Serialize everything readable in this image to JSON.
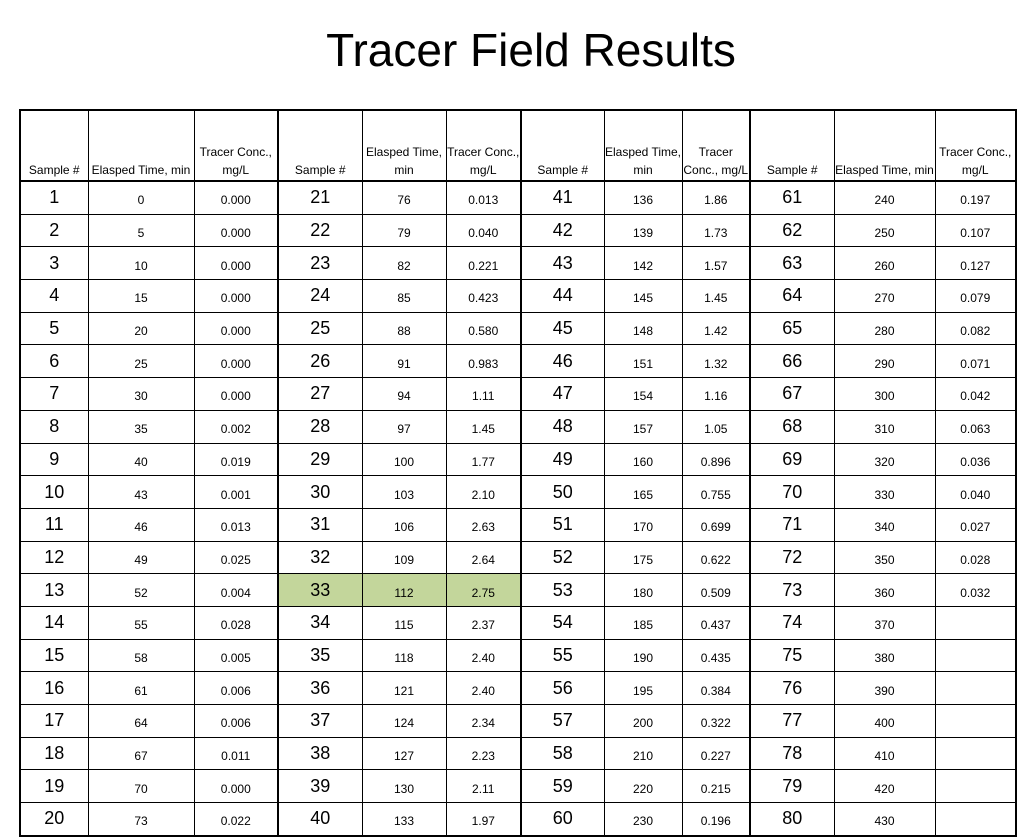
{
  "title": "Tracer Field Results",
  "headers": [
    "Sample #",
    "Elasped Time, min",
    "Tracer Conc., mg/L"
  ],
  "highlight_color": "#c3d69b",
  "groups": [
    {
      "rows": [
        {
          "sample": "1",
          "time": "0",
          "conc": "0.000"
        },
        {
          "sample": "2",
          "time": "5",
          "conc": "0.000"
        },
        {
          "sample": "3",
          "time": "10",
          "conc": "0.000"
        },
        {
          "sample": "4",
          "time": "15",
          "conc": "0.000"
        },
        {
          "sample": "5",
          "time": "20",
          "conc": "0.000"
        },
        {
          "sample": "6",
          "time": "25",
          "conc": "0.000"
        },
        {
          "sample": "7",
          "time": "30",
          "conc": "0.000"
        },
        {
          "sample": "8",
          "time": "35",
          "conc": "0.002"
        },
        {
          "sample": "9",
          "time": "40",
          "conc": "0.019"
        },
        {
          "sample": "10",
          "time": "43",
          "conc": "0.001"
        },
        {
          "sample": "11",
          "time": "46",
          "conc": "0.013"
        },
        {
          "sample": "12",
          "time": "49",
          "conc": "0.025"
        },
        {
          "sample": "13",
          "time": "52",
          "conc": "0.004"
        },
        {
          "sample": "14",
          "time": "55",
          "conc": "0.028"
        },
        {
          "sample": "15",
          "time": "58",
          "conc": "0.005"
        },
        {
          "sample": "16",
          "time": "61",
          "conc": "0.006"
        },
        {
          "sample": "17",
          "time": "64",
          "conc": "0.006"
        },
        {
          "sample": "18",
          "time": "67",
          "conc": "0.011"
        },
        {
          "sample": "19",
          "time": "70",
          "conc": "0.000"
        },
        {
          "sample": "20",
          "time": "73",
          "conc": "0.022"
        }
      ]
    },
    {
      "rows": [
        {
          "sample": "21",
          "time": "76",
          "conc": "0.013"
        },
        {
          "sample": "22",
          "time": "79",
          "conc": "0.040"
        },
        {
          "sample": "23",
          "time": "82",
          "conc": "0.221"
        },
        {
          "sample": "24",
          "time": "85",
          "conc": "0.423"
        },
        {
          "sample": "25",
          "time": "88",
          "conc": "0.580"
        },
        {
          "sample": "26",
          "time": "91",
          "conc": "0.983"
        },
        {
          "sample": "27",
          "time": "94",
          "conc": "1.11"
        },
        {
          "sample": "28",
          "time": "97",
          "conc": "1.45"
        },
        {
          "sample": "29",
          "time": "100",
          "conc": "1.77"
        },
        {
          "sample": "30",
          "time": "103",
          "conc": "2.10"
        },
        {
          "sample": "31",
          "time": "106",
          "conc": "2.63"
        },
        {
          "sample": "32",
          "time": "109",
          "conc": "2.64"
        },
        {
          "sample": "33",
          "time": "112",
          "conc": "2.75",
          "highlight": true
        },
        {
          "sample": "34",
          "time": "115",
          "conc": "2.37"
        },
        {
          "sample": "35",
          "time": "118",
          "conc": "2.40"
        },
        {
          "sample": "36",
          "time": "121",
          "conc": "2.40"
        },
        {
          "sample": "37",
          "time": "124",
          "conc": "2.34"
        },
        {
          "sample": "38",
          "time": "127",
          "conc": "2.23"
        },
        {
          "sample": "39",
          "time": "130",
          "conc": "2.11"
        },
        {
          "sample": "40",
          "time": "133",
          "conc": "1.97"
        }
      ]
    },
    {
      "rows": [
        {
          "sample": "41",
          "time": "136",
          "conc": "1.86"
        },
        {
          "sample": "42",
          "time": "139",
          "conc": "1.73"
        },
        {
          "sample": "43",
          "time": "142",
          "conc": "1.57"
        },
        {
          "sample": "44",
          "time": "145",
          "conc": "1.45"
        },
        {
          "sample": "45",
          "time": "148",
          "conc": "1.42"
        },
        {
          "sample": "46",
          "time": "151",
          "conc": "1.32"
        },
        {
          "sample": "47",
          "time": "154",
          "conc": "1.16"
        },
        {
          "sample": "48",
          "time": "157",
          "conc": "1.05"
        },
        {
          "sample": "49",
          "time": "160",
          "conc": "0.896"
        },
        {
          "sample": "50",
          "time": "165",
          "conc": "0.755"
        },
        {
          "sample": "51",
          "time": "170",
          "conc": "0.699"
        },
        {
          "sample": "52",
          "time": "175",
          "conc": "0.622"
        },
        {
          "sample": "53",
          "time": "180",
          "conc": "0.509"
        },
        {
          "sample": "54",
          "time": "185",
          "conc": "0.437"
        },
        {
          "sample": "55",
          "time": "190",
          "conc": "0.435"
        },
        {
          "sample": "56",
          "time": "195",
          "conc": "0.384"
        },
        {
          "sample": "57",
          "time": "200",
          "conc": "0.322"
        },
        {
          "sample": "58",
          "time": "210",
          "conc": "0.227"
        },
        {
          "sample": "59",
          "time": "220",
          "conc": "0.215"
        },
        {
          "sample": "60",
          "time": "230",
          "conc": "0.196"
        }
      ]
    },
    {
      "rows": [
        {
          "sample": "61",
          "time": "240",
          "conc": "0.197"
        },
        {
          "sample": "62",
          "time": "250",
          "conc": "0.107"
        },
        {
          "sample": "63",
          "time": "260",
          "conc": "0.127"
        },
        {
          "sample": "64",
          "time": "270",
          "conc": "0.079"
        },
        {
          "sample": "65",
          "time": "280",
          "conc": "0.082"
        },
        {
          "sample": "66",
          "time": "290",
          "conc": "0.071"
        },
        {
          "sample": "67",
          "time": "300",
          "conc": "0.042"
        },
        {
          "sample": "68",
          "time": "310",
          "conc": "0.063"
        },
        {
          "sample": "69",
          "time": "320",
          "conc": "0.036"
        },
        {
          "sample": "70",
          "time": "330",
          "conc": "0.040"
        },
        {
          "sample": "71",
          "time": "340",
          "conc": "0.027"
        },
        {
          "sample": "72",
          "time": "350",
          "conc": "0.028"
        },
        {
          "sample": "73",
          "time": "360",
          "conc": "0.032"
        },
        {
          "sample": "74",
          "time": "370",
          "conc": ""
        },
        {
          "sample": "75",
          "time": "380",
          "conc": ""
        },
        {
          "sample": "76",
          "time": "390",
          "conc": ""
        },
        {
          "sample": "77",
          "time": "400",
          "conc": ""
        },
        {
          "sample": "78",
          "time": "410",
          "conc": ""
        },
        {
          "sample": "79",
          "time": "420",
          "conc": ""
        },
        {
          "sample": "80",
          "time": "430",
          "conc": ""
        }
      ]
    }
  ]
}
